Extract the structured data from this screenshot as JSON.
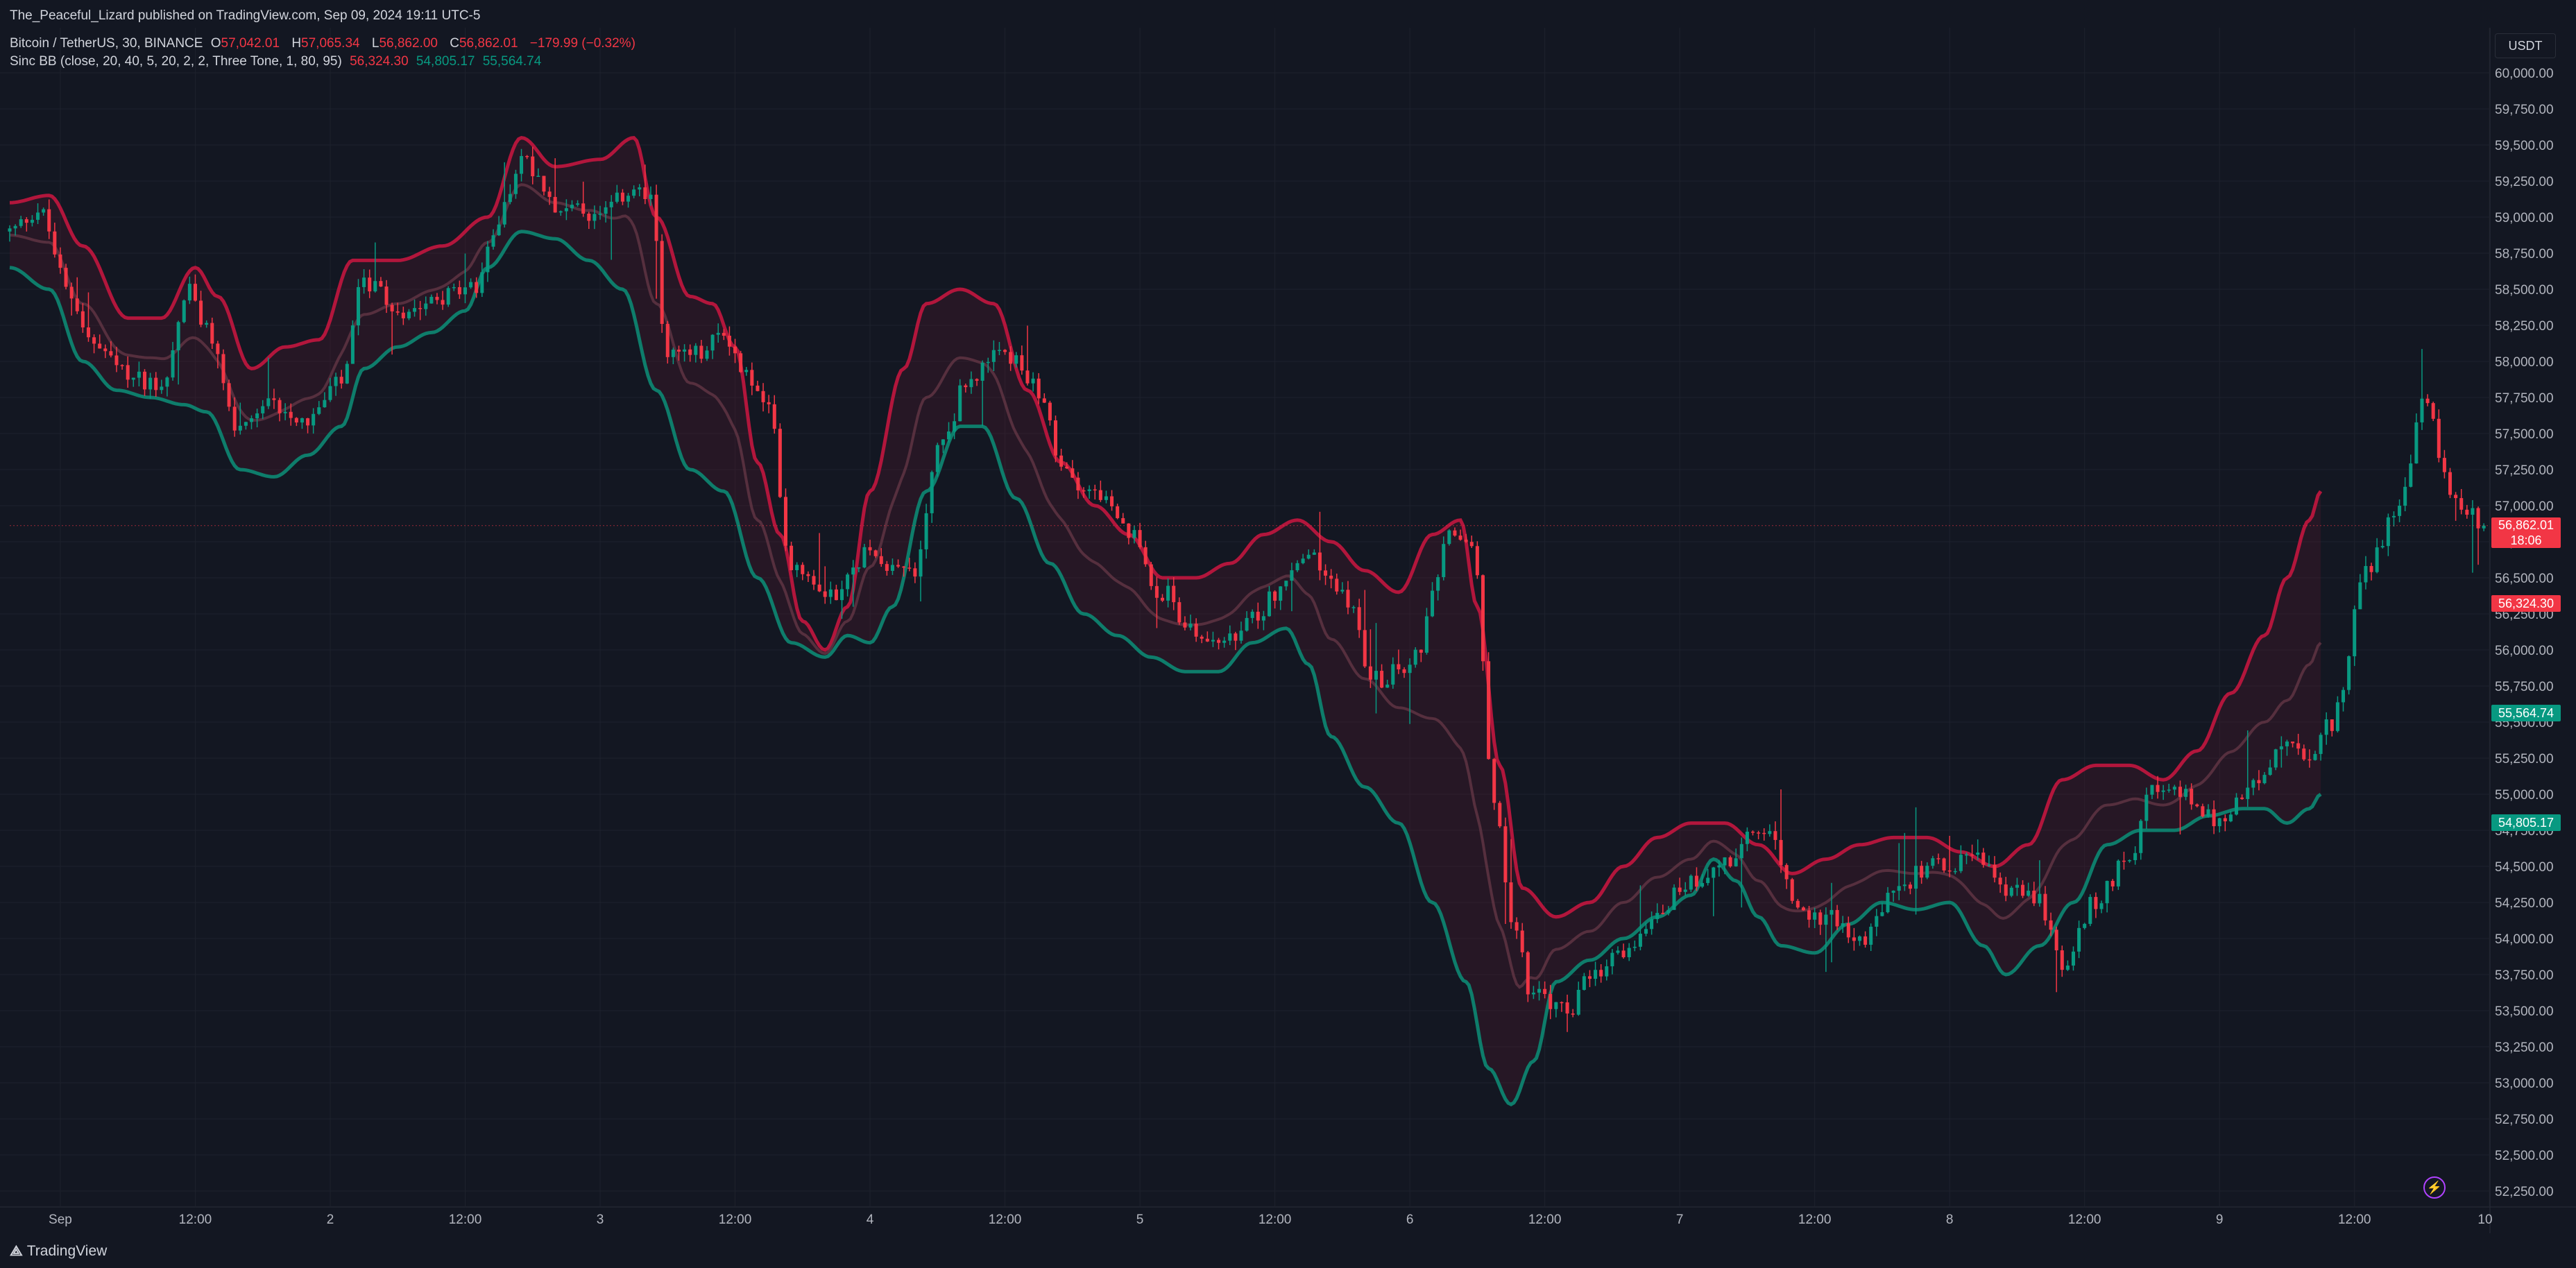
{
  "header": {
    "published": "The_Peaceful_Lizard published on TradingView.com, Sep 09, 2024 19:11 UTC-5",
    "symbol": "Bitcoin / TetherUS, 30, BINANCE",
    "ohlc": [
      {
        "label": "O",
        "value": "57,042.01"
      },
      {
        "label": "H",
        "value": "57,065.34"
      },
      {
        "label": "L",
        "value": "56,862.00"
      },
      {
        "label": "C",
        "value": "56,862.01"
      }
    ],
    "change": "−179.99 (−0.32%)",
    "indicator": "Sinc BB (close, 20, 40, 5, 20, 2, 2, Three Tone, 1, 80, 95)",
    "indicator_values": [
      "56,324.30",
      "54,805.17",
      "55,564.74"
    ]
  },
  "currency_button": "USDT",
  "price_tags": [
    {
      "value": "56,862.01",
      "extra": "18:06",
      "price": 56862.01,
      "color": "#f23645"
    },
    {
      "value": "56,324.30",
      "price": 56324.3,
      "color": "#f23645"
    },
    {
      "value": "55,564.74",
      "price": 55564.74,
      "color": "#089981"
    },
    {
      "value": "54,805.17",
      "price": 54805.17,
      "color": "#089981"
    }
  ],
  "footer": {
    "brand": "TradingView"
  },
  "icons": {
    "bolt": "lightning-icon",
    "logo": "tradingview-logo-icon"
  },
  "colors": {
    "up": "#089981",
    "down": "#f23645",
    "upper_band": "#b2163c",
    "lower_band": "#0e7d6b",
    "background": "#131722",
    "grid": "#1e222d"
  },
  "chart_data": {
    "type": "candlestick",
    "ylim": [
      52250,
      60000
    ],
    "y_ticks": [
      52250,
      52500,
      52750,
      53000,
      53250,
      53500,
      53750,
      54000,
      54250,
      54500,
      54750,
      55000,
      55250,
      55500,
      55750,
      56000,
      56250,
      56500,
      56750,
      57000,
      57250,
      57500,
      57750,
      58000,
      58250,
      58500,
      58750,
      59000,
      59250,
      59500,
      59750,
      60000
    ],
    "y_tick_labels": [
      "52,250.00",
      "52,500.00",
      "52,750.00",
      "53,000.00",
      "53,250.00",
      "53,500.00",
      "53,750.00",
      "54,000.00",
      "54,250.00",
      "54,500.00",
      "54,750.00",
      "55,000.00",
      "55,250.00",
      "55,500.00",
      "55,750.00",
      "56,000.00",
      "56,250.00",
      "56,500.00",
      "56,750.00",
      "57,000.00",
      "57,250.00",
      "57,500.00",
      "57,750.00",
      "58,000.00",
      "58,250.00",
      "58,500.00",
      "58,750.00",
      "59,000.00",
      "59,250.00",
      "59,500.00",
      "59,750.00",
      "60,000.00"
    ],
    "x_tick_labels": [
      "Sep",
      "12:00",
      "2",
      "12:00",
      "3",
      "12:00",
      "4",
      "12:00",
      "5",
      "12:00",
      "6",
      "12:00",
      "7",
      "12:00",
      "8",
      "12:00",
      "9",
      "12:00",
      "10"
    ],
    "x_tick_hours": [
      0,
      12,
      24,
      36,
      48,
      60,
      72,
      84,
      96,
      108,
      120,
      132,
      144,
      156,
      168,
      180,
      192,
      204,
      216
    ],
    "x_start_hours": -4.5,
    "x_end_hours": 215.8,
    "candle_hours": 0.5,
    "last_price": 56862.01,
    "close_keypoints": [
      [
        -4.5,
        58900
      ],
      [
        -2,
        59050
      ],
      [
        1,
        58450
      ],
      [
        3,
        58100
      ],
      [
        6,
        57900
      ],
      [
        9,
        57850
      ],
      [
        11.5,
        58500
      ],
      [
        13,
        58200
      ],
      [
        16,
        57500
      ],
      [
        19,
        57700
      ],
      [
        22,
        57600
      ],
      [
        25,
        57850
      ],
      [
        27,
        58550
      ],
      [
        30,
        58350
      ],
      [
        33,
        58450
      ],
      [
        37,
        58500
      ],
      [
        39,
        59000
      ],
      [
        41,
        59400
      ],
      [
        45,
        59050
      ],
      [
        48,
        59000
      ],
      [
        51,
        59200
      ],
      [
        52.5,
        59100
      ],
      [
        54,
        58050
      ],
      [
        57,
        58050
      ],
      [
        59,
        58200
      ],
      [
        61,
        57900
      ],
      [
        63,
        57650
      ],
      [
        65,
        56600
      ],
      [
        69,
        56400
      ],
      [
        72,
        56700
      ],
      [
        74,
        56600
      ],
      [
        76,
        56550
      ],
      [
        78,
        57400
      ],
      [
        81,
        57900
      ],
      [
        84,
        58050
      ],
      [
        87,
        57800
      ],
      [
        89,
        57250
      ],
      [
        92,
        57100
      ],
      [
        95,
        56800
      ],
      [
        98,
        56400
      ],
      [
        101,
        56100
      ],
      [
        104,
        56050
      ],
      [
        106,
        56200
      ],
      [
        108,
        56400
      ],
      [
        111,
        56650
      ],
      [
        114,
        56400
      ],
      [
        117,
        55800
      ],
      [
        120,
        55900
      ],
      [
        124,
        56800
      ],
      [
        125.5,
        56750
      ],
      [
        127.5,
        55000
      ],
      [
        129,
        54150
      ],
      [
        131,
        53600
      ],
      [
        134,
        53500
      ],
      [
        136,
        53700
      ],
      [
        139,
        53900
      ],
      [
        142,
        54200
      ],
      [
        145,
        54400
      ],
      [
        148,
        54550
      ],
      [
        151.5,
        54750
      ],
      [
        155,
        54150
      ],
      [
        158,
        54150
      ],
      [
        160,
        53950
      ],
      [
        163,
        54300
      ],
      [
        166,
        54500
      ],
      [
        170,
        54550
      ],
      [
        173,
        54350
      ],
      [
        176,
        54250
      ],
      [
        178,
        53800
      ],
      [
        181,
        54250
      ],
      [
        184,
        54600
      ],
      [
        186,
        55000
      ],
      [
        189,
        55000
      ],
      [
        192,
        54800
      ],
      [
        195,
        55050
      ],
      [
        198,
        55350
      ],
      [
        200,
        55200
      ],
      [
        202,
        55500
      ],
      [
        205,
        56550
      ],
      [
        208,
        57000
      ],
      [
        210,
        57700
      ],
      [
        213,
        57050
      ],
      [
        215.8,
        56862
      ]
    ],
    "upper_band_keypoints": [
      [
        -4.5,
        59100
      ],
      [
        -1,
        59150
      ],
      [
        2,
        58800
      ],
      [
        6,
        58300
      ],
      [
        9,
        58300
      ],
      [
        12,
        58650
      ],
      [
        14,
        58450
      ],
      [
        17,
        57950
      ],
      [
        20,
        58100
      ],
      [
        23,
        58150
      ],
      [
        26,
        58700
      ],
      [
        30,
        58700
      ],
      [
        34,
        58800
      ],
      [
        38,
        59000
      ],
      [
        41,
        59550
      ],
      [
        44,
        59350
      ],
      [
        48,
        59400
      ],
      [
        51,
        59550
      ],
      [
        53,
        59000
      ],
      [
        56,
        58450
      ],
      [
        58,
        58400
      ],
      [
        60,
        58100
      ],
      [
        62,
        57300
      ],
      [
        64,
        56800
      ],
      [
        66,
        56200
      ],
      [
        68,
        56000
      ],
      [
        70,
        56300
      ],
      [
        72,
        57100
      ],
      [
        75,
        57950
      ],
      [
        77,
        58400
      ],
      [
        80,
        58500
      ],
      [
        83,
        58400
      ],
      [
        86,
        57800
      ],
      [
        89,
        57300
      ],
      [
        92,
        57000
      ],
      [
        95,
        56800
      ],
      [
        98,
        56500
      ],
      [
        101,
        56500
      ],
      [
        104,
        56600
      ],
      [
        107,
        56800
      ],
      [
        110,
        56900
      ],
      [
        113,
        56750
      ],
      [
        116,
        56550
      ],
      [
        119,
        56400
      ],
      [
        122,
        56800
      ],
      [
        124.5,
        56900
      ],
      [
        126,
        56300
      ],
      [
        128,
        55200
      ],
      [
        130,
        54350
      ],
      [
        133,
        54150
      ],
      [
        136,
        54250
      ],
      [
        139,
        54500
      ],
      [
        142,
        54700
      ],
      [
        145,
        54800
      ],
      [
        148,
        54800
      ],
      [
        151,
        54650
      ],
      [
        154,
        54450
      ],
      [
        157,
        54550
      ],
      [
        160,
        54650
      ],
      [
        163,
        54700
      ],
      [
        166,
        54700
      ],
      [
        169,
        54600
      ],
      [
        172,
        54500
      ],
      [
        175,
        54650
      ],
      [
        178,
        55100
      ],
      [
        181,
        55200
      ],
      [
        184,
        55200
      ],
      [
        187,
        55100
      ],
      [
        190,
        55300
      ],
      [
        193,
        55700
      ],
      [
        196,
        56100
      ],
      [
        198,
        56500
      ],
      [
        200,
        56900
      ],
      [
        201,
        57100
      ]
    ],
    "lower_band_keypoints": [
      [
        -4.5,
        58650
      ],
      [
        -1,
        58500
      ],
      [
        2,
        58000
      ],
      [
        5,
        57800
      ],
      [
        8,
        57750
      ],
      [
        11,
        57700
      ],
      [
        13,
        57650
      ],
      [
        16,
        57250
      ],
      [
        19,
        57200
      ],
      [
        22,
        57350
      ],
      [
        25,
        57550
      ],
      [
        27,
        57950
      ],
      [
        30,
        58100
      ],
      [
        33,
        58200
      ],
      [
        36,
        58350
      ],
      [
        38,
        58650
      ],
      [
        41,
        58900
      ],
      [
        44,
        58850
      ],
      [
        47,
        58700
      ],
      [
        50,
        58500
      ],
      [
        53,
        57800
      ],
      [
        56,
        57250
      ],
      [
        59,
        57100
      ],
      [
        62,
        56500
      ],
      [
        65,
        56050
      ],
      [
        68,
        55950
      ],
      [
        70,
        56100
      ],
      [
        72,
        56050
      ],
      [
        74,
        56300
      ],
      [
        77,
        57100
      ],
      [
        80,
        57550
      ],
      [
        82,
        57550
      ],
      [
        85,
        57050
      ],
      [
        88,
        56600
      ],
      [
        91,
        56250
      ],
      [
        94,
        56100
      ],
      [
        97,
        55950
      ],
      [
        100,
        55850
      ],
      [
        103,
        55850
      ],
      [
        106,
        56050
      ],
      [
        109,
        56150
      ],
      [
        111,
        55900
      ],
      [
        113,
        55400
      ],
      [
        116,
        55050
      ],
      [
        119,
        54800
      ],
      [
        122,
        54250
      ],
      [
        125,
        53700
      ],
      [
        127,
        53100
      ],
      [
        129,
        52850
      ],
      [
        131,
        53150
      ],
      [
        133,
        53700
      ],
      [
        136,
        53850
      ],
      [
        139,
        54000
      ],
      [
        142,
        54150
      ],
      [
        145,
        54300
      ],
      [
        147,
        54550
      ],
      [
        149,
        54400
      ],
      [
        151,
        54150
      ],
      [
        153,
        53950
      ],
      [
        156,
        53900
      ],
      [
        159,
        54100
      ],
      [
        162,
        54250
      ],
      [
        165,
        54200
      ],
      [
        168,
        54250
      ],
      [
        171,
        53950
      ],
      [
        173,
        53750
      ],
      [
        176,
        53950
      ],
      [
        179,
        54250
      ],
      [
        182,
        54650
      ],
      [
        185,
        54750
      ],
      [
        188,
        54750
      ],
      [
        191,
        54850
      ],
      [
        194,
        54900
      ],
      [
        196,
        54900
      ],
      [
        198,
        54800
      ],
      [
        200,
        54900
      ],
      [
        201,
        55000
      ]
    ]
  }
}
